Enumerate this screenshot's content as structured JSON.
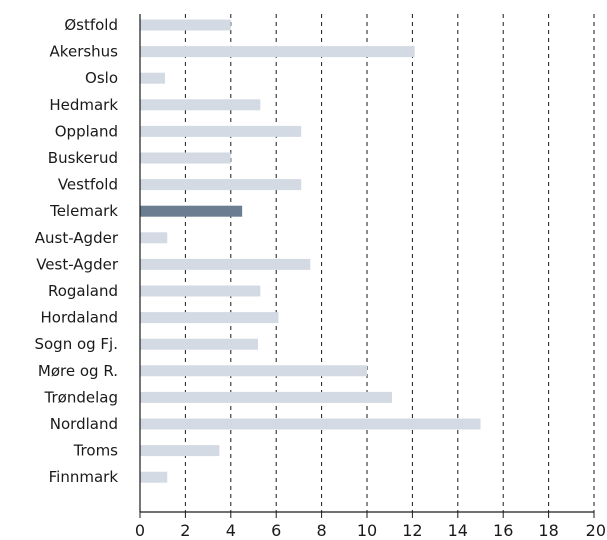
{
  "chart_data": {
    "type": "bar",
    "orientation": "horizontal",
    "categories": [
      "Østfold",
      "Akershus",
      "Oslo",
      "Hedmark",
      "Oppland",
      "Buskerud",
      "Vestfold",
      "Telemark",
      "Aust-Agder",
      "Vest-Agder",
      "Rogaland",
      "Hordaland",
      "Sogn og Fj.",
      "Møre og R.",
      "Trøndelag",
      "Nordland",
      "Troms",
      "Finnmark"
    ],
    "values": [
      4.0,
      12.1,
      1.1,
      5.3,
      7.1,
      4.0,
      7.1,
      4.5,
      1.2,
      7.5,
      5.3,
      6.1,
      5.2,
      10.0,
      11.1,
      15.0,
      3.5,
      1.2
    ],
    "highlight_category": "Telemark",
    "xlim": [
      0,
      20
    ],
    "x_ticks": [
      "0",
      "2",
      "4",
      "6",
      "8",
      "10",
      "12",
      "14",
      "16",
      "18",
      "20"
    ],
    "grid": "vertical dashed",
    "colors": {
      "bar": "#d3dae3",
      "highlight": "#6a7d91",
      "grid": "#1a1a1a",
      "axis": "#1a1a1a"
    }
  }
}
